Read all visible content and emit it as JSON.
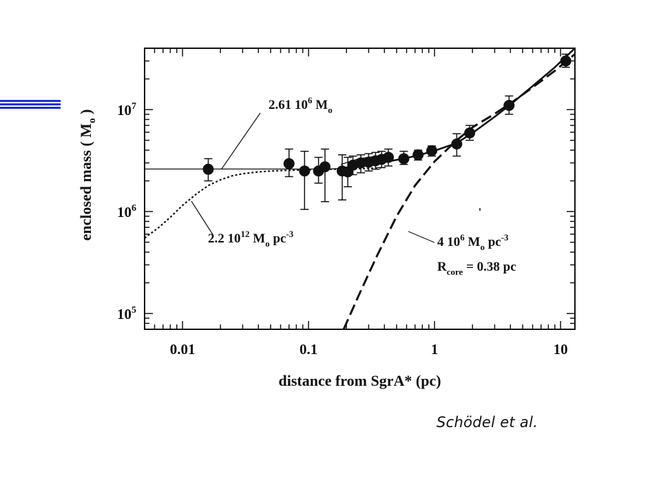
{
  "credit": "Schödel et al.",
  "chart_data": {
    "type": "scatter",
    "title": "",
    "xlabel": "distance from SgrA* (pc)",
    "ylabel_parts": [
      "enclosed mass ( M",
      "o",
      " )"
    ],
    "xscale": "log",
    "yscale": "log",
    "xlim": [
      0.005,
      13
    ],
    "ylim": [
      70000,
      40000000
    ],
    "x_ticks": [
      {
        "value": 0.01,
        "label": "0.01"
      },
      {
        "value": 0.1,
        "label": "0.1"
      },
      {
        "value": 1,
        "label": "1"
      },
      {
        "value": 10,
        "label": "10"
      }
    ],
    "y_ticks": [
      {
        "value": 100000,
        "base": "10",
        "exp": "5"
      },
      {
        "value": 1000000,
        "base": "10",
        "exp": "6"
      },
      {
        "value": 10000000,
        "base": "10",
        "exp": "7"
      }
    ],
    "annotations": {
      "point_mass": {
        "parts": [
          [
            "2.61 10",
            ""
          ],
          [
            "6",
            "sup"
          ],
          [
            " M",
            ""
          ],
          [
            "o",
            "sub"
          ]
        ]
      },
      "cusp": {
        "parts": [
          [
            "2.2 10",
            ""
          ],
          [
            "12",
            "sup"
          ],
          [
            " M",
            ""
          ],
          [
            "o",
            "sub"
          ],
          [
            " pc",
            ""
          ],
          [
            "-3",
            "sup"
          ]
        ]
      },
      "cluster_density": {
        "parts": [
          [
            "4 10",
            ""
          ],
          [
            "6",
            "sup"
          ],
          [
            " M",
            ""
          ],
          [
            "o",
            "sub"
          ],
          [
            " pc",
            ""
          ],
          [
            "-3",
            "sup"
          ]
        ]
      },
      "cluster_core": {
        "parts": [
          [
            "R",
            ""
          ],
          [
            "core",
            "sub"
          ],
          [
            " = 0.38 pc",
            ""
          ]
        ]
      }
    },
    "points": [
      {
        "x": 0.016,
        "y": 2600000,
        "ylo": 2000000,
        "yhi": 3300000
      },
      {
        "x": 0.07,
        "y": 2950000,
        "ylo": 2200000,
        "yhi": 4100000
      },
      {
        "x": 0.093,
        "y": 2500000,
        "ylo": 1050000,
        "yhi": 3900000
      },
      {
        "x": 0.12,
        "y": 2500000,
        "ylo": 1900000,
        "yhi": 3400000
      },
      {
        "x": 0.135,
        "y": 2750000,
        "ylo": 1250000,
        "yhi": 4100000
      },
      {
        "x": 0.185,
        "y": 2500000,
        "ylo": 1300000,
        "yhi": 3600000
      },
      {
        "x": 0.205,
        "y": 2450000,
        "ylo": 1750000,
        "yhi": 3400000
      },
      {
        "x": 0.225,
        "y": 2850000,
        "ylo": 2300000,
        "yhi": 3500000
      },
      {
        "x": 0.26,
        "y": 3000000,
        "ylo": 2400000,
        "yhi": 3600000
      },
      {
        "x": 0.3,
        "y": 3050000,
        "ylo": 2500000,
        "yhi": 3700000
      },
      {
        "x": 0.34,
        "y": 3150000,
        "ylo": 2600000,
        "yhi": 3800000
      },
      {
        "x": 0.38,
        "y": 3250000,
        "ylo": 2700000,
        "yhi": 3900000
      },
      {
        "x": 0.43,
        "y": 3400000,
        "ylo": 2800000,
        "yhi": 4100000
      },
      {
        "x": 0.57,
        "y": 3300000,
        "ylo": 2900000,
        "yhi": 3900000
      },
      {
        "x": 0.74,
        "y": 3600000,
        "ylo": 3200000,
        "yhi": 4000000
      },
      {
        "x": 0.95,
        "y": 3950000,
        "ylo": 3500000,
        "yhi": 4400000
      },
      {
        "x": 1.5,
        "y": 4600000,
        "ylo": 3500000,
        "yhi": 5800000
      },
      {
        "x": 1.9,
        "y": 5900000,
        "ylo": 5000000,
        "yhi": 7000000
      },
      {
        "x": 3.9,
        "y": 11000000,
        "ylo": 9000000,
        "yhi": 13600000
      },
      {
        "x": 11,
        "y": 30000000,
        "ylo": 26000000,
        "yhi": 35000000
      }
    ],
    "curves": [
      {
        "style": "solid-thin",
        "x": [
          0.005,
          0.02,
          0.05,
          0.1,
          0.15,
          0.18
        ],
        "y": [
          2610000,
          2610000,
          2610000,
          2610000,
          2620000,
          2650000
        ]
      },
      {
        "style": "solid-thin",
        "x": [
          0.18,
          0.25,
          0.35,
          0.45
        ],
        "y": [
          2900000,
          3300000,
          3500000,
          3550000
        ]
      },
      {
        "style": "solid-thick",
        "x": [
          0.18,
          0.22,
          0.3,
          0.43,
          0.6,
          0.8,
          1.0,
          1.5,
          2.0,
          3.0,
          4.0,
          6.0,
          9.0,
          13.0
        ],
        "y": [
          2500000,
          2650000,
          2900000,
          3100000,
          3350000,
          3650000,
          3950000,
          4700000,
          5900000,
          8500000,
          11200000,
          17000000,
          26000000,
          40000000
        ]
      },
      {
        "style": "dotted",
        "x": [
          0.005,
          0.0065,
          0.008,
          0.01,
          0.013,
          0.016,
          0.02,
          0.025,
          0.03,
          0.04,
          0.05,
          0.07,
          0.1,
          0.15,
          0.2,
          0.3,
          0.4
        ],
        "y": [
          550000,
          700000,
          880000,
          1150000,
          1500000,
          1800000,
          2050000,
          2250000,
          2350000,
          2450000,
          2500000,
          2540000,
          2570000,
          2600000,
          2620000,
          2650000,
          2700000
        ]
      },
      {
        "style": "dashed",
        "x": [
          0.19,
          0.25,
          0.35,
          0.5,
          0.7,
          1.0,
          1.5,
          2.0,
          3.0,
          4.0,
          6.0,
          9.0,
          13.0
        ],
        "y": [
          70000,
          150000,
          370000,
          900000,
          1800000,
          3100000,
          5000000,
          6700000,
          9100000,
          11500000,
          16500000,
          24000000,
          35000000
        ]
      }
    ]
  }
}
